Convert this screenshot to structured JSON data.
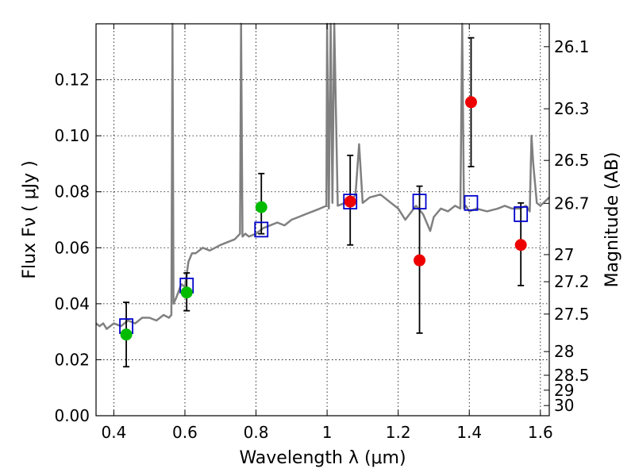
{
  "chart_data": {
    "type": "scatter",
    "xlabel": "Wavelength  λ (μm)",
    "ylabel": "Flux  Fν  ( μJy )",
    "ylabel_right": "Magnitude (AB)",
    "xlim": [
      0.35,
      1.625
    ],
    "ylim": [
      0.0,
      0.14
    ],
    "x_ticks": [
      0.4,
      0.6,
      0.8,
      1.0,
      1.2,
      1.4,
      1.6
    ],
    "x_tick_labels": [
      "0.4",
      "0.6",
      "0.8",
      "1",
      "1.2",
      "1.4",
      "1.6"
    ],
    "y_ticks": [
      0.0,
      0.02,
      0.04,
      0.06,
      0.08,
      0.1,
      0.12
    ],
    "y_tick_labels": [
      "0.00",
      "0.02",
      "0.04",
      "0.06",
      "0.08",
      "0.10",
      "0.12"
    ],
    "mag_ticks": [
      "26.1",
      "26.3",
      "26.5",
      "26.7",
      "27",
      "27.2",
      "27.5",
      "28",
      "28.5",
      "29",
      "30"
    ],
    "grid": true,
    "colors": {
      "spectrum": "#808080",
      "green_points": "#00bb00",
      "red_points": "#ee0000",
      "model_squares": "#0000cc",
      "errorbars": "#000000"
    },
    "series": [
      {
        "name": "model spectrum",
        "kind": "line",
        "x": [
          0.35,
          0.36,
          0.37,
          0.38,
          0.4,
          0.42,
          0.44,
          0.46,
          0.48,
          0.5,
          0.52,
          0.54,
          0.555,
          0.562,
          0.565,
          0.568,
          0.575,
          0.59,
          0.6,
          0.61,
          0.62,
          0.63,
          0.65,
          0.67,
          0.7,
          0.72,
          0.74,
          0.755,
          0.758,
          0.762,
          0.77,
          0.78,
          0.8,
          0.82,
          0.84,
          0.86,
          0.88,
          0.9,
          0.92,
          0.94,
          0.96,
          0.98,
          0.998,
          1.0,
          1.005,
          1.01,
          1.015,
          1.02,
          1.03,
          1.05,
          1.07,
          1.08,
          1.09,
          1.1,
          1.12,
          1.15,
          1.18,
          1.2,
          1.22,
          1.25,
          1.27,
          1.29,
          1.3,
          1.32,
          1.34,
          1.36,
          1.375,
          1.38,
          1.385,
          1.39,
          1.4,
          1.42,
          1.45,
          1.48,
          1.5,
          1.52,
          1.54,
          1.56,
          1.57,
          1.575,
          1.58,
          1.59,
          1.6,
          1.625
        ],
        "y": [
          0.033,
          0.032,
          0.033,
          0.031,
          0.033,
          0.032,
          0.034,
          0.033,
          0.035,
          0.035,
          0.034,
          0.036,
          0.035,
          0.036,
          0.14,
          0.04,
          0.042,
          0.047,
          0.046,
          0.055,
          0.058,
          0.058,
          0.06,
          0.059,
          0.061,
          0.062,
          0.063,
          0.065,
          0.14,
          0.064,
          0.065,
          0.064,
          0.065,
          0.067,
          0.068,
          0.069,
          0.068,
          0.07,
          0.071,
          0.072,
          0.073,
          0.074,
          0.075,
          0.14,
          0.074,
          0.14,
          0.076,
          0.14,
          0.075,
          0.076,
          0.077,
          0.079,
          0.097,
          0.076,
          0.078,
          0.079,
          0.076,
          0.074,
          0.07,
          0.075,
          0.072,
          0.066,
          0.071,
          0.074,
          0.073,
          0.075,
          0.074,
          0.14,
          0.074,
          0.075,
          0.073,
          0.074,
          0.073,
          0.074,
          0.075,
          0.074,
          0.074,
          0.075,
          0.073,
          0.1,
          0.09,
          0.076,
          0.075,
          0.078
        ]
      },
      {
        "name": "green photometry",
        "kind": "points",
        "x": [
          0.435,
          0.605,
          0.815
        ],
        "y": [
          0.029,
          0.044,
          0.0745
        ],
        "yerr_low": [
          0.0175,
          0.0375,
          null
        ],
        "yerr_high": [
          0.0405,
          0.051,
          null
        ]
      },
      {
        "name": "red photometry",
        "kind": "points",
        "x": [
          1.065,
          1.26,
          1.405,
          1.545
        ],
        "y": [
          0.0765,
          0.0555,
          0.112,
          0.061
        ],
        "yerr_low": [
          0.061,
          0.0295,
          0.089,
          0.0465
        ],
        "yerr_high": [
          0.093,
          0.082,
          0.135,
          0.076
        ]
      },
      {
        "name": "model band fluxes",
        "kind": "squares",
        "x": [
          0.435,
          0.605,
          0.815,
          1.065,
          1.26,
          1.405,
          1.545
        ],
        "y": [
          0.032,
          0.0465,
          0.0665,
          0.0765,
          0.0765,
          0.076,
          0.072
        ]
      },
      {
        "name": "extra errorbar",
        "kind": "errorbar",
        "x": [
          0.815
        ],
        "yerr_low": [
          0.065
        ],
        "yerr_high": [
          0.0865
        ]
      }
    ]
  }
}
